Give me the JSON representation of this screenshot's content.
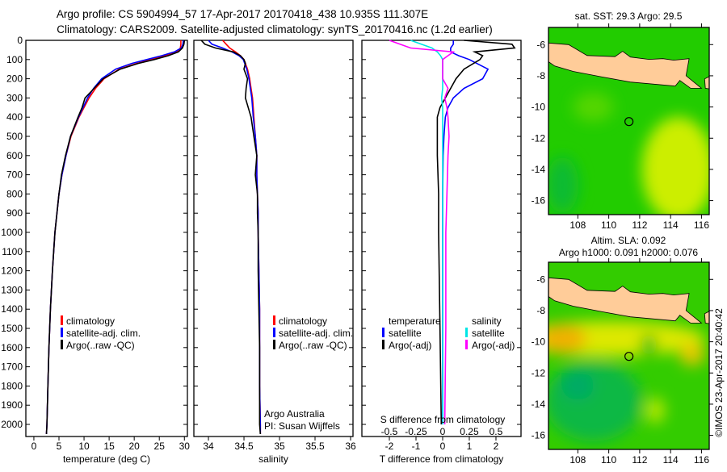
{
  "title": {
    "line1": "Argo profile: CS 5904994_57 17-Apr-2017 20170418_438 10.935S 111.307E",
    "line2": "Climatology: CARS2009. Satellite-adjusted climatology: synTS_20170416.nc (1.2d earlier)"
  },
  "credit": "©IMOS 23-Apr-2017 20:40:42",
  "chart_data": [
    {
      "id": "temperature",
      "type": "line",
      "xlabel": "temperature (deg C)",
      "ylabel": "depth",
      "xlim": [
        -1.6,
        30.6
      ],
      "ylim": [
        2063,
        0
      ],
      "xticks": [
        "0",
        "5",
        "10",
        "15",
        "20",
        "25",
        "30"
      ],
      "xtick_values": [
        0,
        5,
        10,
        15,
        20,
        25,
        30
      ],
      "yticks": [
        "0",
        "100",
        "200",
        "300",
        "400",
        "500",
        "600",
        "700",
        "800",
        "900",
        "1000",
        "1100",
        "1200",
        "1300",
        "1400",
        "1500",
        "1600",
        "1700",
        "1800",
        "1900",
        "2000"
      ],
      "ytick_values": [
        0,
        100,
        200,
        300,
        400,
        500,
        600,
        700,
        800,
        900,
        1000,
        1100,
        1200,
        1300,
        1400,
        1500,
        1600,
        1700,
        1800,
        1900,
        2000
      ],
      "depth": [
        0,
        20,
        40,
        60,
        80,
        100,
        120,
        150,
        200,
        250,
        300,
        350,
        400,
        500,
        600,
        700,
        800,
        900,
        1000,
        1200,
        1400,
        1600,
        1800,
        2000,
        2050
      ],
      "series": [
        {
          "name": "climatology",
          "color": "#ff0000",
          "values": [
            29.3,
            29.3,
            29.2,
            28.5,
            26,
            23.5,
            20.5,
            17,
            14,
            12.3,
            11,
            10,
            9,
            7.4,
            6.4,
            5.6,
            5,
            4.6,
            4.2,
            3.7,
            3.3,
            3,
            2.8,
            2.6,
            2.5
          ]
        },
        {
          "name": "satellite-adj. clim.",
          "color": "#0000ff",
          "values": [
            29.8,
            29.7,
            29.4,
            28,
            25.5,
            22.5,
            19.5,
            16.3,
            13.5,
            11.9,
            10.7,
            9.8,
            8.9,
            7.3,
            6.4,
            5.6,
            5,
            4.6,
            4.2,
            3.7,
            3.3,
            3,
            2.8,
            2.6,
            2.5
          ]
        },
        {
          "name": "Argo(..raw -QC)",
          "color": "#000000",
          "values": [
            30,
            29.9,
            29.6,
            28.8,
            26.8,
            24,
            20.8,
            17.2,
            13.8,
            12,
            10.2,
            9.6,
            8.8,
            7.3,
            6.3,
            5.5,
            5,
            4.6,
            4.2,
            3.7,
            3.3,
            3,
            2.8,
            2.6,
            2.5
          ]
        }
      ]
    },
    {
      "id": "salinity",
      "type": "line",
      "xlabel": "salinity",
      "xlim": [
        33.795,
        36.034
      ],
      "ylim": [
        2063,
        0
      ],
      "xticks": [
        "34",
        "34.5",
        "35",
        "35.5",
        "36"
      ],
      "xtick_values": [
        34,
        34.5,
        35,
        35.5,
        36
      ],
      "ytick_values": [
        0,
        100,
        200,
        300,
        400,
        500,
        600,
        700,
        800,
        900,
        1000,
        1100,
        1200,
        1300,
        1400,
        1500,
        1600,
        1700,
        1800,
        1900,
        2000
      ],
      "depth": [
        0,
        20,
        40,
        60,
        80,
        100,
        120,
        150,
        200,
        250,
        300,
        350,
        400,
        500,
        600,
        700,
        800,
        900,
        1000,
        1200,
        1400,
        1600,
        1800,
        2000,
        2050
      ],
      "series": [
        {
          "name": "climatology",
          "color": "#ff0000",
          "values": [
            34.2,
            34.25,
            34.3,
            34.38,
            34.45,
            34.5,
            34.52,
            34.55,
            34.58,
            34.6,
            34.62,
            34.63,
            34.64,
            34.66,
            34.68,
            34.68,
            34.69,
            34.7,
            34.7,
            34.71,
            34.72,
            34.72,
            34.72,
            34.73,
            34.73
          ]
        },
        {
          "name": "satellite-adj. clim.",
          "color": "#0000ff",
          "values": [
            34.0,
            34.05,
            34.2,
            34.33,
            34.43,
            34.49,
            34.51,
            34.54,
            34.57,
            34.59,
            34.61,
            34.62,
            34.63,
            34.66,
            34.68,
            34.68,
            34.69,
            34.7,
            34.7,
            34.71,
            34.72,
            34.72,
            34.72,
            34.73,
            34.73
          ]
        },
        {
          "name": "Argo(..raw -QC)",
          "color": "#000000",
          "values": [
            33.9,
            33.95,
            34.1,
            34.35,
            34.45,
            34.5,
            34.52,
            34.5,
            34.55,
            34.53,
            34.52,
            34.56,
            34.6,
            34.64,
            34.68,
            34.66,
            34.69,
            34.69,
            34.7,
            34.7,
            34.71,
            34.72,
            34.72,
            34.72,
            34.73
          ]
        }
      ],
      "annotation": [
        "Argo Australia",
        "PI: Susan Wijffels"
      ]
    },
    {
      "id": "difference",
      "type": "line",
      "xlabel": "T difference from climatology",
      "x2label": "S difference from climatology",
      "xlim": [
        -3.03,
        2.94
      ],
      "ylim": [
        2063,
        0
      ],
      "xticks": [
        "-2",
        "-1",
        "0",
        "1",
        "2"
      ],
      "xtick_values": [
        -2,
        -1,
        0,
        1,
        2
      ],
      "x2ticks": [
        "-0.5",
        "-0.25",
        "0",
        "0.25",
        "0.5"
      ],
      "x2tick_values": [
        -0.5,
        -0.25,
        0,
        0.25,
        0.5
      ],
      "ytick_values": [
        0,
        100,
        200,
        300,
        400,
        500,
        600,
        700,
        800,
        900,
        1000,
        1100,
        1200,
        1300,
        1400,
        1500,
        1600,
        1700,
        1800,
        1900,
        2000
      ],
      "depth": [
        0,
        20,
        40,
        60,
        80,
        100,
        150,
        200,
        250,
        300,
        350,
        400,
        500,
        600,
        800,
        1000,
        1500,
        2000
      ],
      "legend_headers": [
        "temperature",
        "salinity"
      ],
      "series": [
        {
          "name": "satellite",
          "group": "temperature",
          "axis": "T",
          "color": "#0000ff",
          "values": [
            0.4,
            0.4,
            0.3,
            0.3,
            0.6,
            1.0,
            1.7,
            1.5,
            0.8,
            0.4,
            0.2,
            0.1,
            0.05,
            0.02,
            0,
            0,
            0,
            0
          ]
        },
        {
          "name": "Argo(-adj)",
          "group": "temperature",
          "axis": "T",
          "color": "#000000",
          "values": [
            0.8,
            2.6,
            2.7,
            1.2,
            1.5,
            1.4,
            0.8,
            0.5,
            0.3,
            0.1,
            -0.1,
            -0.2,
            -0.2,
            -0.2,
            -0.15,
            -0.15,
            -0.1,
            -0.05
          ]
        },
        {
          "name": "satellite",
          "group": "salinity",
          "axis": "S",
          "color": "#00e5e5",
          "values": [
            -0.3,
            -0.2,
            -0.1,
            -0.05,
            -0.02,
            0,
            0,
            0,
            0,
            -0.01,
            0,
            0,
            0,
            0,
            0,
            0,
            0,
            0
          ]
        },
        {
          "name": "Argo(-adj)",
          "group": "salinity",
          "axis": "S",
          "color": "#ff00ff",
          "values": [
            -0.5,
            -0.4,
            -0.3,
            0.1,
            0.05,
            0,
            0,
            0,
            0.05,
            0.02,
            0.04,
            0.05,
            0.06,
            0.05,
            0.04,
            0.03,
            0.03,
            0.02
          ]
        }
      ]
    },
    {
      "id": "sst-map",
      "type": "heatmap",
      "title": "sat. SST: 29.3 Argo: 29.5",
      "xlim": [
        106.1,
        116.5
      ],
      "ylim": [
        -16.9,
        -4.9
      ],
      "xticks": [
        "108",
        "110",
        "112",
        "114",
        "116"
      ],
      "xtick_values": [
        108,
        110,
        112,
        114,
        116
      ],
      "yticks": [
        "-6",
        "-8",
        "-10",
        "-12",
        "-14",
        "-16"
      ],
      "ytick_values": [
        -6,
        -8,
        -10,
        -12,
        -14,
        -16
      ],
      "marker": {
        "lon": 111.307,
        "lat": -10.935
      },
      "colors": {
        "land": "#ffcc99",
        "base": "#22cc00",
        "warm": "#ccee00"
      }
    },
    {
      "id": "sla-map",
      "type": "heatmap",
      "title": "Altim. SLA: 0.092",
      "subtitle": "Argo h1000: 0.091 h2000: 0.076",
      "xlim": [
        106.1,
        116.5
      ],
      "ylim": [
        -16.9,
        -4.9
      ],
      "xticks": [
        "108",
        "110",
        "112",
        "114",
        "116"
      ],
      "xtick_values": [
        108,
        110,
        112,
        114,
        116
      ],
      "yticks": [
        "-6",
        "-8",
        "-10",
        "-12",
        "-14",
        "-16"
      ],
      "ytick_values": [
        -6,
        -8,
        -10,
        -12,
        -14,
        -16
      ],
      "marker": {
        "lon": 111.307,
        "lat": -10.935
      },
      "colors": {
        "land": "#ffcc99",
        "base": "#33cc00",
        "high": "#f0b000",
        "low": "#00aa66"
      }
    }
  ]
}
